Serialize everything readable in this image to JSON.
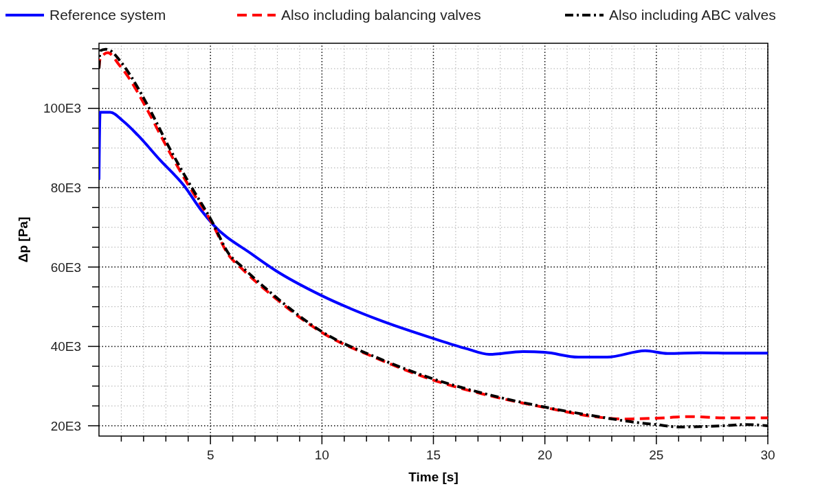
{
  "chart_data": {
    "type": "line",
    "xlabel": "Time [s]",
    "ylabel": "Δp [Pa]",
    "legend": "top",
    "grid": true,
    "xlim": [
      0,
      30
    ],
    "ylim": [
      17400,
      116400
    ],
    "xticks": [
      {
        "value": 1,
        "label": null
      },
      {
        "value": 2,
        "label": null
      },
      {
        "value": 3,
        "label": null
      },
      {
        "value": 4,
        "label": null
      },
      5,
      {
        "value": 6,
        "label": null
      },
      {
        "value": 7,
        "label": null
      },
      {
        "value": 8,
        "label": null
      },
      {
        "value": 9,
        "label": null
      },
      10,
      {
        "value": 11,
        "label": null
      },
      {
        "value": 12,
        "label": null
      },
      {
        "value": 13,
        "label": null
      },
      {
        "value": 14,
        "label": null
      },
      15,
      {
        "value": 16,
        "label": null
      },
      {
        "value": 17,
        "label": null
      },
      {
        "value": 18,
        "label": null
      },
      {
        "value": 19,
        "label": null
      },
      20,
      {
        "value": 21,
        "label": null
      },
      {
        "value": 22,
        "label": null
      },
      {
        "value": 23,
        "label": null
      },
      {
        "value": 24,
        "label": null
      },
      25,
      {
        "value": 26,
        "label": null
      },
      {
        "value": 27,
        "label": null
      },
      {
        "value": 28,
        "label": null
      },
      {
        "value": 29,
        "label": null
      },
      30
    ],
    "yticks": [
      {
        "value": 20000,
        "label": "20E3"
      },
      {
        "value": 25000,
        "label": null
      },
      {
        "value": 30000,
        "label": null
      },
      {
        "value": 35000,
        "label": null
      },
      {
        "value": 40000,
        "label": "40E3"
      },
      {
        "value": 45000,
        "label": null
      },
      {
        "value": 50000,
        "label": null
      },
      {
        "value": 55000,
        "label": null
      },
      {
        "value": 60000,
        "label": "60E3"
      },
      {
        "value": 65000,
        "label": null
      },
      {
        "value": 70000,
        "label": null
      },
      {
        "value": 75000,
        "label": null
      },
      {
        "value": 80000,
        "label": "80E3"
      },
      {
        "value": 85000,
        "label": null
      },
      {
        "value": 90000,
        "label": null
      },
      {
        "value": 95000,
        "label": null
      },
      {
        "value": 100000,
        "label": "100E3"
      },
      {
        "value": 105000,
        "label": null
      },
      {
        "value": 110000,
        "label": null
      },
      {
        "value": 115000,
        "label": null
      }
    ],
    "series": [
      {
        "name": "Reference system",
        "color": "#0000ff",
        "line_style": "solid",
        "x": [
          0,
          0.05,
          0.5,
          1.1,
          1.73,
          2.75,
          3.8,
          4.6,
          5.12,
          6.87,
          7.9,
          9.95,
          12.5,
          15,
          16.5,
          17.5,
          19,
          20,
          21.5,
          22.8,
          24.5,
          25.5,
          27,
          28.5,
          30
        ],
        "values": [
          82000,
          99000,
          99000,
          96700,
          93300,
          86900,
          80600,
          74200,
          70700,
          63200,
          59200,
          52900,
          46800,
          42000,
          39400,
          38000,
          38700,
          38500,
          37300,
          37300,
          38900,
          38200,
          38400,
          38300,
          38300
        ]
      },
      {
        "name": "Also including balancing valves",
        "color": "#ff0000",
        "line_style": "dashed",
        "x": [
          0,
          0.05,
          0.4,
          0.9,
          1.42,
          2.13,
          3.18,
          4.1,
          5.03,
          5.84,
          6.35,
          7.9,
          10,
          12.5,
          15,
          17.5,
          20,
          22.5,
          23.5,
          25,
          26.5,
          28,
          30
        ],
        "values": [
          110000,
          112500,
          114000,
          111000,
          107000,
          100000,
          88800,
          79800,
          71500,
          62800,
          59900,
          52200,
          43500,
          36900,
          31500,
          27600,
          24600,
          22100,
          21700,
          21900,
          22300,
          22000,
          22000
        ]
      },
      {
        "name": "Also including ABC valves",
        "color": "#000000",
        "line_style": "dashdot",
        "x": [
          0,
          0.05,
          0.3,
          0.5,
          0.9,
          1.42,
          2.13,
          3.18,
          4.1,
          5.03,
          5.84,
          6.35,
          7.9,
          10,
          12.5,
          15,
          17.5,
          20,
          22.5,
          24,
          25,
          26,
          28,
          29,
          30
        ],
        "values": [
          110000,
          114500,
          114900,
          114600,
          112300,
          108200,
          101300,
          89800,
          80600,
          71900,
          63200,
          60400,
          52600,
          43700,
          37100,
          31800,
          27800,
          24700,
          22200,
          20900,
          20300,
          19700,
          20000,
          20300,
          20000
        ]
      }
    ]
  }
}
